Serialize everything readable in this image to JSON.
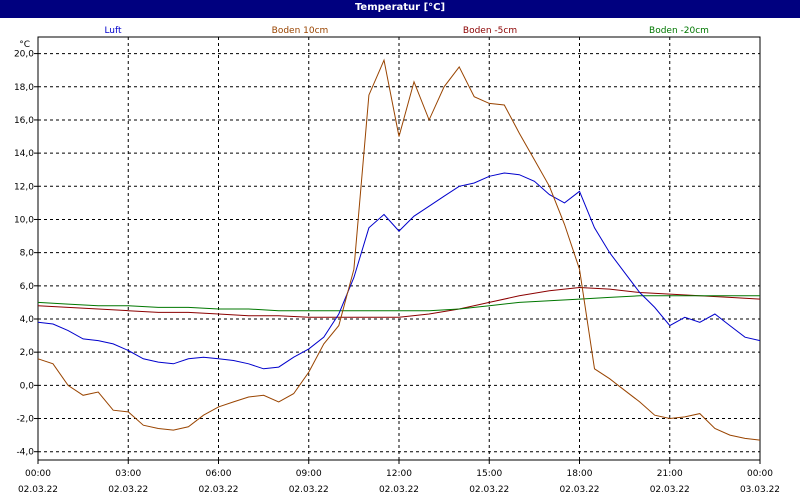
{
  "window": {
    "title": "Temperatur [°C]"
  },
  "chart_data": {
    "type": "line",
    "title": "Temperatur [°C]",
    "ylabel": "°C",
    "xlabel": "",
    "ylim": [
      -4.5,
      21.0
    ],
    "yticks": [
      20,
      18,
      16,
      14,
      12,
      10,
      8,
      6,
      4,
      2,
      0,
      -2,
      -4
    ],
    "ytick_labels": [
      "20,0",
      "18,0",
      "16,0",
      "14,0",
      "12,0",
      "10,0",
      "8,0",
      "6,0",
      "4,0",
      "2,0",
      "0,0",
      "-2,0",
      "-4,0"
    ],
    "xlim": [
      0,
      24
    ],
    "xticks": [
      0,
      3,
      6,
      9,
      12,
      15,
      18,
      21,
      24
    ],
    "xtick_labels": [
      "00:00",
      "03:00",
      "06:00",
      "09:00",
      "12:00",
      "15:00",
      "18:00",
      "21:00",
      "00:00"
    ],
    "xtick_dates": [
      "02.03.22",
      "02.03.22",
      "02.03.22",
      "02.03.22",
      "02.03.22",
      "02.03.22",
      "02.03.22",
      "02.03.22",
      "03.03.22"
    ],
    "grid": true,
    "legend_position": "top",
    "series": [
      {
        "name": "Luft",
        "color": "#0000cc",
        "x": [
          0,
          0.5,
          1,
          1.5,
          2,
          2.5,
          3,
          3.5,
          4,
          4.5,
          5,
          5.5,
          6,
          6.5,
          7,
          7.5,
          8,
          8.5,
          9,
          9.5,
          10,
          10.5,
          11,
          11.5,
          12,
          12.5,
          13,
          13.5,
          14,
          14.5,
          15,
          15.5,
          16,
          16.5,
          17,
          17.5,
          18,
          18.5,
          19,
          19.5,
          20,
          20.5,
          21,
          21.5,
          22,
          22.5,
          23,
          23.5,
          24
        ],
        "y": [
          3.8,
          3.7,
          3.3,
          2.8,
          2.7,
          2.5,
          2.1,
          1.6,
          1.4,
          1.3,
          1.6,
          1.7,
          1.6,
          1.5,
          1.3,
          1.0,
          1.1,
          1.7,
          2.2,
          2.9,
          4.3,
          6.5,
          9.5,
          10.3,
          9.3,
          10.2,
          10.8,
          11.4,
          12.0,
          12.2,
          12.6,
          12.8,
          12.7,
          12.3,
          11.5,
          11.0,
          11.7,
          9.5,
          8.0,
          6.8,
          5.6,
          4.7,
          3.6,
          4.1,
          3.8,
          4.3,
          3.6,
          2.9,
          2.7
        ]
      },
      {
        "name": "Boden 10cm",
        "color": "#994400",
        "x": [
          0,
          0.5,
          1,
          1.5,
          2,
          2.5,
          3,
          3.5,
          4,
          4.5,
          5,
          5.5,
          6,
          6.5,
          7,
          7.5,
          8,
          8.5,
          9,
          9.5,
          10,
          10.5,
          11,
          11.5,
          12,
          12.5,
          13,
          13.5,
          14,
          14.5,
          15,
          15.5,
          16,
          16.5,
          17,
          17.5,
          18,
          18.5,
          19,
          19.5,
          20,
          20.5,
          21,
          21.5,
          22,
          22.5,
          23,
          23.5,
          24
        ],
        "y": [
          1.6,
          1.3,
          0.0,
          -0.6,
          -0.4,
          -1.5,
          -1.6,
          -2.4,
          -2.6,
          -2.7,
          -2.5,
          -1.8,
          -1.3,
          -1.0,
          -0.7,
          -0.6,
          -1.0,
          -0.5,
          0.8,
          2.5,
          3.6,
          7.0,
          17.5,
          19.6,
          15.0,
          18.3,
          16.0,
          18.0,
          19.2,
          17.4,
          17.0,
          16.9,
          15.2,
          13.6,
          12.0,
          9.7,
          7.0,
          1.0,
          0.4,
          -0.3,
          -1.0,
          -1.8,
          -2.0,
          -1.9,
          -1.7,
          -2.6,
          -3.0,
          -3.2,
          -3.3
        ]
      },
      {
        "name": "Boden -5cm",
        "color": "#8b0000",
        "x": [
          0,
          1,
          2,
          3,
          4,
          5,
          6,
          7,
          8,
          9,
          10,
          11,
          12,
          13,
          14,
          15,
          16,
          17,
          18,
          19,
          20,
          21,
          22,
          23,
          24
        ],
        "y": [
          4.8,
          4.7,
          4.6,
          4.5,
          4.4,
          4.4,
          4.3,
          4.2,
          4.2,
          4.1,
          4.1,
          4.1,
          4.1,
          4.3,
          4.6,
          5.0,
          5.4,
          5.7,
          5.9,
          5.8,
          5.6,
          5.5,
          5.4,
          5.3,
          5.2
        ]
      },
      {
        "name": "Boden -20cm",
        "color": "#007700",
        "x": [
          0,
          1,
          2,
          3,
          4,
          5,
          6,
          7,
          8,
          9,
          10,
          11,
          12,
          13,
          14,
          15,
          16,
          17,
          18,
          19,
          20,
          21,
          22,
          23,
          24
        ],
        "y": [
          5.0,
          4.9,
          4.8,
          4.8,
          4.7,
          4.7,
          4.6,
          4.6,
          4.5,
          4.5,
          4.5,
          4.5,
          4.5,
          4.5,
          4.6,
          4.8,
          5.0,
          5.1,
          5.2,
          5.3,
          5.4,
          5.4,
          5.4,
          5.4,
          5.4
        ]
      }
    ]
  }
}
